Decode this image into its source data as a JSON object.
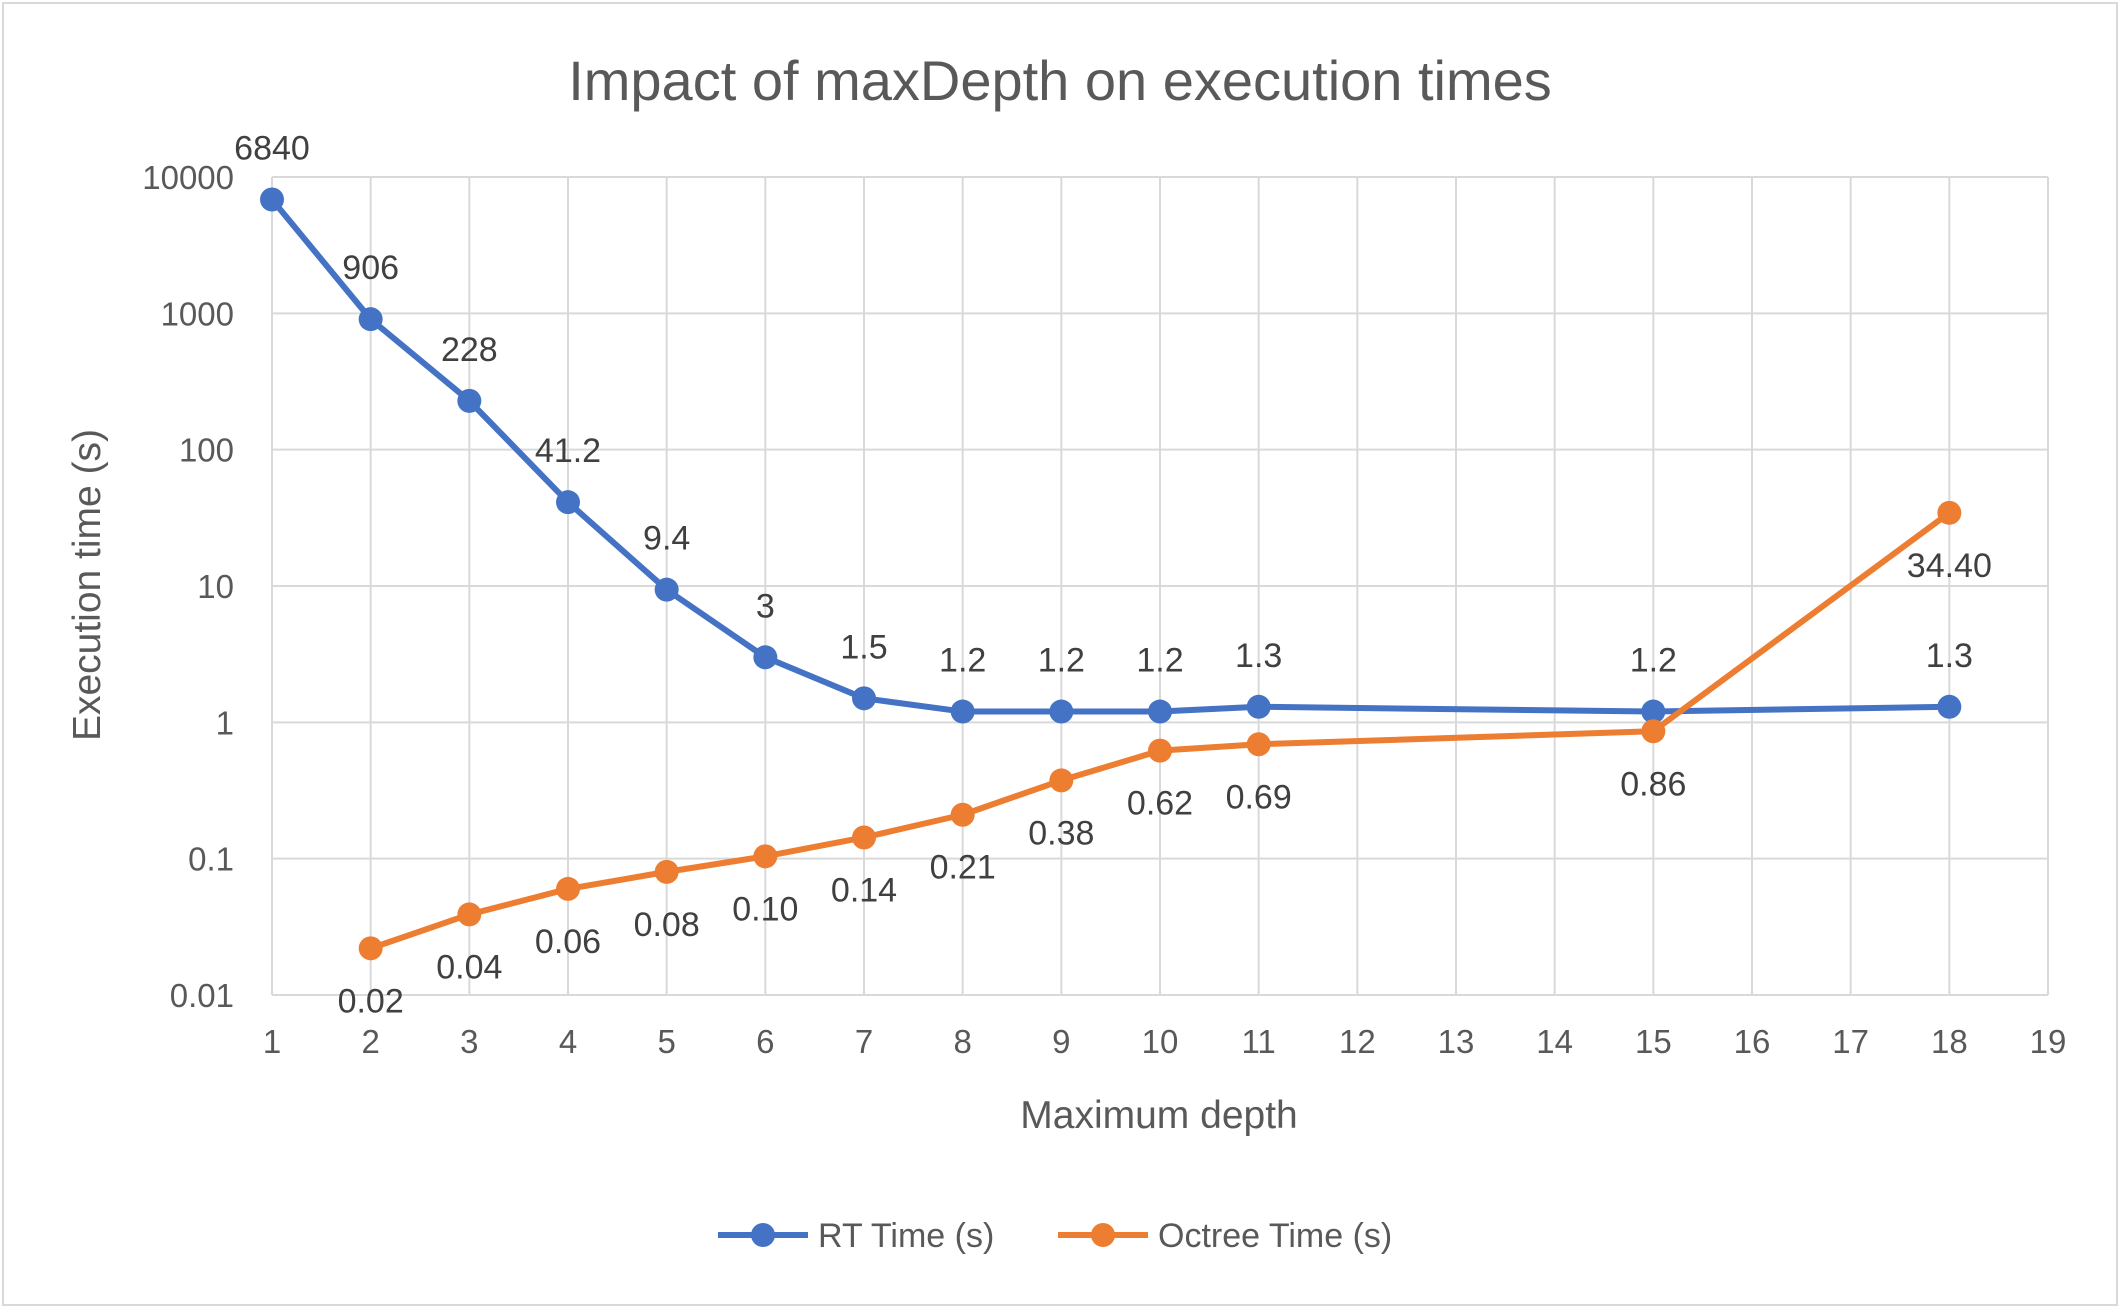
{
  "chart_data": {
    "type": "line",
    "title": "Impact of maxDepth on execution times",
    "xlabel": "Maximum depth",
    "ylabel": "Execution time (s)",
    "y_scale": "log",
    "ylim": [
      0.01,
      10000
    ],
    "xlim": [
      1,
      19
    ],
    "x_ticks": [
      1,
      2,
      3,
      4,
      5,
      6,
      7,
      8,
      9,
      10,
      11,
      12,
      13,
      14,
      15,
      16,
      17,
      18,
      19
    ],
    "y_ticks": [
      {
        "value": 0.01,
        "label": "0.01"
      },
      {
        "value": 0.1,
        "label": "0.1"
      },
      {
        "value": 1,
        "label": "1"
      },
      {
        "value": 10,
        "label": "10"
      },
      {
        "value": 100,
        "label": "100"
      },
      {
        "value": 1000,
        "label": "1000"
      },
      {
        "value": 10000,
        "label": "10000"
      }
    ],
    "grid": true,
    "legend_position": "bottom",
    "series": [
      {
        "name": "RT Time (s)",
        "color": "#4472c4",
        "label_position": "above",
        "points": [
          {
            "x": 1,
            "y": 6840,
            "label": "6840"
          },
          {
            "x": 2,
            "y": 906,
            "label": "906"
          },
          {
            "x": 3,
            "y": 228,
            "label": "228"
          },
          {
            "x": 4,
            "y": 41.2,
            "label": "41.2"
          },
          {
            "x": 5,
            "y": 9.4,
            "label": "9.4"
          },
          {
            "x": 6,
            "y": 3,
            "label": "3"
          },
          {
            "x": 7,
            "y": 1.5,
            "label": "1.5"
          },
          {
            "x": 8,
            "y": 1.2,
            "label": "1.2"
          },
          {
            "x": 9,
            "y": 1.2,
            "label": "1.2"
          },
          {
            "x": 10,
            "y": 1.2,
            "label": "1.2"
          },
          {
            "x": 11,
            "y": 1.3,
            "label": "1.3"
          },
          {
            "x": 15,
            "y": 1.2,
            "label": "1.2"
          },
          {
            "x": 18,
            "y": 1.3,
            "label": "1.3"
          }
        ]
      },
      {
        "name": "Octree Time (s)",
        "color": "#ed7d31",
        "label_position": "below",
        "points": [
          {
            "x": 2,
            "y": 0.022,
            "label": "0.02"
          },
          {
            "x": 3,
            "y": 0.039,
            "label": "0.04"
          },
          {
            "x": 4,
            "y": 0.06,
            "label": "0.06"
          },
          {
            "x": 5,
            "y": 0.08,
            "label": "0.08"
          },
          {
            "x": 6,
            "y": 0.104,
            "label": "0.10"
          },
          {
            "x": 7,
            "y": 0.143,
            "label": "0.14"
          },
          {
            "x": 8,
            "y": 0.21,
            "label": "0.21"
          },
          {
            "x": 9,
            "y": 0.375,
            "label": "0.38"
          },
          {
            "x": 10,
            "y": 0.62,
            "label": "0.62"
          },
          {
            "x": 11,
            "y": 0.69,
            "label": "0.69"
          },
          {
            "x": 15,
            "y": 0.86,
            "label": "0.86"
          },
          {
            "x": 18,
            "y": 34.4,
            "label": "34.40"
          }
        ]
      }
    ]
  }
}
